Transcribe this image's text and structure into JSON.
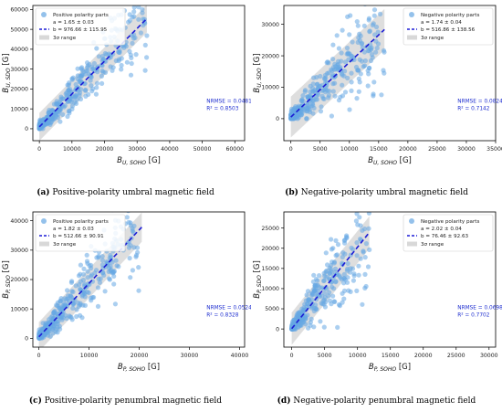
{
  "chart_data": [
    {
      "type": "scatter",
      "panel": "a",
      "caption_label": "(a)",
      "caption_text": "Positive-polarity umbral magnetic field",
      "xlabel_main": "B",
      "xlabel_sub": "U, SOHO",
      "xlabel_unit": "[G]",
      "ylabel_main": "B",
      "ylabel_sub": "U, SDO",
      "ylabel_unit": "[G]",
      "xlim": [
        -2000,
        63000
      ],
      "ylim": [
        -6000,
        62000
      ],
      "xticks": [
        0,
        10000,
        20000,
        30000,
        40000,
        50000,
        60000
      ],
      "yticks": [
        0,
        10000,
        20000,
        30000,
        40000,
        50000,
        60000
      ],
      "legend": {
        "placement": "top-left",
        "points_label": "Positive polarity parts",
        "fit_a": "a = 1.65 ± 0.03",
        "fit_b": "b = 976.66 ± 115.95",
        "band_label": "3σ range"
      },
      "fit": {
        "slope": 1.65,
        "intercept": 976.66,
        "x_range": [
          0,
          33000
        ]
      },
      "band_half_width": 7000,
      "stats": {
        "nrmse": "NRMSE = 0.0481",
        "r2": "R² = 0.8503"
      },
      "points": {
        "count": 380,
        "x_max": 33000,
        "scatter_frac": 0.22,
        "seed": 11
      },
      "colors": {
        "points": "#66a7e3",
        "fit": "#1b1bd6",
        "band": "#d8d8d8",
        "stats": "#1f2fd0"
      }
    },
    {
      "type": "scatter",
      "panel": "b",
      "caption_label": "(b)",
      "caption_text": "Negative-polarity umbral magnetic field",
      "xlabel_main": "B",
      "xlabel_sub": "U, SOHO",
      "xlabel_unit": "[G]",
      "ylabel_main": "B",
      "ylabel_sub": "U, SDO",
      "ylabel_unit": "[G]",
      "xlim": [
        -1200,
        35000
      ],
      "ylim": [
        -7000,
        36000
      ],
      "xticks": [
        0,
        5000,
        10000,
        15000,
        20000,
        25000,
        30000,
        35000
      ],
      "yticks": [
        0,
        10000,
        20000,
        30000
      ],
      "legend": {
        "placement": "top-right",
        "points_label": "Negative polarity parts",
        "fit_a": "a = 1.74 ± 0.04",
        "fit_b": "b = 516.86 ± 138.56",
        "band_label": "3σ range"
      },
      "fit": {
        "slope": 1.74,
        "intercept": 516.86,
        "x_range": [
          0,
          16000
        ]
      },
      "band_half_width": 6500,
      "stats": {
        "nrmse": "NRMSE = 0.0824",
        "r2": "R² = 0.7142"
      },
      "points": {
        "count": 340,
        "x_max": 16000,
        "scatter_frac": 0.3,
        "seed": 23
      },
      "colors": {
        "points": "#66a7e3",
        "fit": "#1b1bd6",
        "band": "#d8d8d8",
        "stats": "#1f2fd0"
      }
    },
    {
      "type": "scatter",
      "panel": "c",
      "caption_label": "(c)",
      "caption_text": "Positive-polarity penumbral magnetic field",
      "xlabel_main": "B",
      "xlabel_sub": "P, SOHO",
      "xlabel_unit": "[G]",
      "ylabel_main": "B",
      "ylabel_sub": "P, SDO",
      "ylabel_unit": "[G]",
      "xlim": [
        -1200,
        41000
      ],
      "ylim": [
        -3000,
        43000
      ],
      "xticks": [
        0,
        10000,
        20000,
        30000,
        40000
      ],
      "yticks": [
        0,
        10000,
        20000,
        30000,
        40000
      ],
      "legend": {
        "placement": "top-left",
        "points_label": "Positive polarity parts",
        "fit_a": "a = 1.82 ± 0.03",
        "fit_b": "b = 512.66 ± 90.91",
        "band_label": "3σ range"
      },
      "fit": {
        "slope": 1.82,
        "intercept": 512.66,
        "x_range": [
          0,
          20500
        ]
      },
      "band_half_width": 5000,
      "stats": {
        "nrmse": "NRMSE = 0.0524",
        "r2": "R² = 0.8328"
      },
      "points": {
        "count": 360,
        "x_max": 20000,
        "scatter_frac": 0.22,
        "seed": 37
      },
      "colors": {
        "points": "#66a7e3",
        "fit": "#1b1bd6",
        "band": "#d8d8d8",
        "stats": "#1f2fd0"
      }
    },
    {
      "type": "scatter",
      "panel": "d",
      "caption_label": "(d)",
      "caption_text": "Negative-polarity penumbral magnetic field",
      "xlabel_main": "B",
      "xlabel_sub": "P, SOHO",
      "xlabel_unit": "[G]",
      "ylabel_main": "B",
      "ylabel_sub": "P, SDO",
      "ylabel_unit": "[G]",
      "xlim": [
        -1200,
        31000
      ],
      "ylim": [
        -4500,
        29000
      ],
      "xticks": [
        0,
        5000,
        10000,
        15000,
        20000,
        25000,
        30000
      ],
      "yticks": [
        0,
        5000,
        10000,
        15000,
        20000,
        25000
      ],
      "legend": {
        "placement": "top-right",
        "points_label": "Negative polarity parts",
        "fit_a": "a = 2.02 ± 0.04",
        "fit_b": "b = 76.46 ± 92.63",
        "band_label": "3σ range"
      },
      "fit": {
        "slope": 2.02,
        "intercept": 76.46,
        "x_range": [
          0,
          11800
        ]
      },
      "band_half_width": 4000,
      "stats": {
        "nrmse": "NRMSE = 0.0698",
        "r2": "R² = 0.7702"
      },
      "points": {
        "count": 340,
        "x_max": 11800,
        "scatter_frac": 0.3,
        "seed": 53
      },
      "colors": {
        "points": "#66a7e3",
        "fit": "#1b1bd6",
        "band": "#d8d8d8",
        "stats": "#1f2fd0"
      }
    }
  ]
}
